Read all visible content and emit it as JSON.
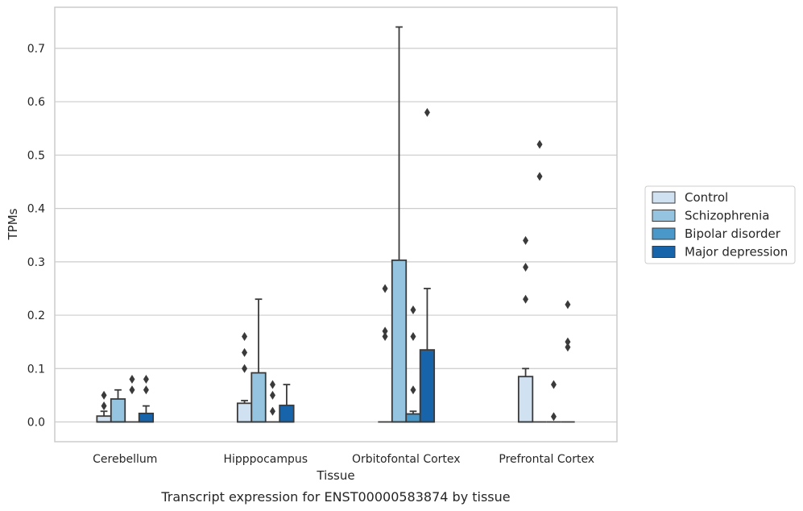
{
  "chart_data": {
    "type": "box",
    "xlabel": "Tissue",
    "ylabel": "TPMs",
    "caption": "Transcript expression for ENST00000583874 by tissue",
    "categories": [
      "Cerebellum",
      "Hipppocampus",
      "Orbitofontal Cortex",
      "Prefrontal Cortex"
    ],
    "ylim": [
      -0.037,
      0.777
    ],
    "yticks": [
      0.0,
      0.1,
      0.2,
      0.3,
      0.4,
      0.5,
      0.6,
      0.7
    ],
    "ytick_labels": [
      "0.0",
      "0.1",
      "0.2",
      "0.3",
      "0.4",
      "0.5",
      "0.6",
      "0.7"
    ],
    "grid": "horizontal",
    "legend_position": "right",
    "series": [
      {
        "name": "Control",
        "color": "#d0e1f2",
        "boxes": [
          {
            "q1": 0.0,
            "median": 0.0,
            "q3": 0.011,
            "whislo": 0.0,
            "whishi": 0.02,
            "fliers": [
              0.03,
              0.05
            ]
          },
          {
            "q1": 0.0,
            "median": 0.0,
            "q3": 0.035,
            "whislo": 0.0,
            "whishi": 0.04,
            "fliers": [
              0.1,
              0.13,
              0.16
            ]
          },
          {
            "q1": 0.0,
            "median": 0.0,
            "q3": 0.0,
            "whislo": 0.0,
            "whishi": 0.0,
            "fliers": [
              0.16,
              0.17,
              0.25
            ]
          },
          {
            "q1": 0.0,
            "median": 0.0,
            "q3": 0.085,
            "whislo": 0.0,
            "whishi": 0.1,
            "fliers": [
              0.23,
              0.29,
              0.34
            ]
          }
        ]
      },
      {
        "name": "Schizophrenia",
        "color": "#94c4df",
        "boxes": [
          {
            "q1": 0.0,
            "median": 0.0,
            "q3": 0.043,
            "whislo": 0.0,
            "whishi": 0.06,
            "fliers": []
          },
          {
            "q1": 0.0,
            "median": 0.0,
            "q3": 0.092,
            "whislo": 0.0,
            "whishi": 0.23,
            "fliers": []
          },
          {
            "q1": 0.0,
            "median": 0.0,
            "q3": 0.303,
            "whislo": 0.0,
            "whishi": 0.74,
            "fliers": []
          },
          {
            "q1": 0.0,
            "median": 0.0,
            "q3": 0.0,
            "whislo": 0.0,
            "whishi": 0.0,
            "fliers": [
              0.46,
              0.52
            ]
          }
        ]
      },
      {
        "name": "Bipolar disorder",
        "color": "#4a98c9",
        "boxes": [
          {
            "q1": 0.0,
            "median": 0.0,
            "q3": 0.0,
            "whislo": 0.0,
            "whishi": 0.0,
            "fliers": [
              0.06,
              0.08
            ]
          },
          {
            "q1": 0.0,
            "median": 0.0,
            "q3": 0.0,
            "whislo": 0.0,
            "whishi": 0.0,
            "fliers": [
              0.02,
              0.05,
              0.07
            ]
          },
          {
            "q1": 0.0,
            "median": 0.0,
            "q3": 0.015,
            "whislo": 0.0,
            "whishi": 0.02,
            "fliers": [
              0.06,
              0.16,
              0.21
            ]
          },
          {
            "q1": 0.0,
            "median": 0.0,
            "q3": 0.0,
            "whislo": 0.0,
            "whishi": 0.0,
            "fliers": [
              0.01,
              0.07
            ]
          }
        ]
      },
      {
        "name": "Major depression",
        "color": "#1764ab",
        "boxes": [
          {
            "q1": 0.0,
            "median": 0.0,
            "q3": 0.016,
            "whislo": 0.0,
            "whishi": 0.03,
            "fliers": [
              0.06,
              0.08
            ]
          },
          {
            "q1": 0.0,
            "median": 0.0,
            "q3": 0.031,
            "whislo": 0.0,
            "whishi": 0.07,
            "fliers": []
          },
          {
            "q1": 0.0,
            "median": 0.0,
            "q3": 0.135,
            "whislo": 0.0,
            "whishi": 0.25,
            "fliers": [
              0.58
            ]
          },
          {
            "q1": 0.0,
            "median": 0.0,
            "q3": 0.0,
            "whislo": 0.0,
            "whishi": 0.0,
            "fliers": [
              0.14,
              0.15,
              0.22
            ]
          }
        ]
      }
    ]
  }
}
